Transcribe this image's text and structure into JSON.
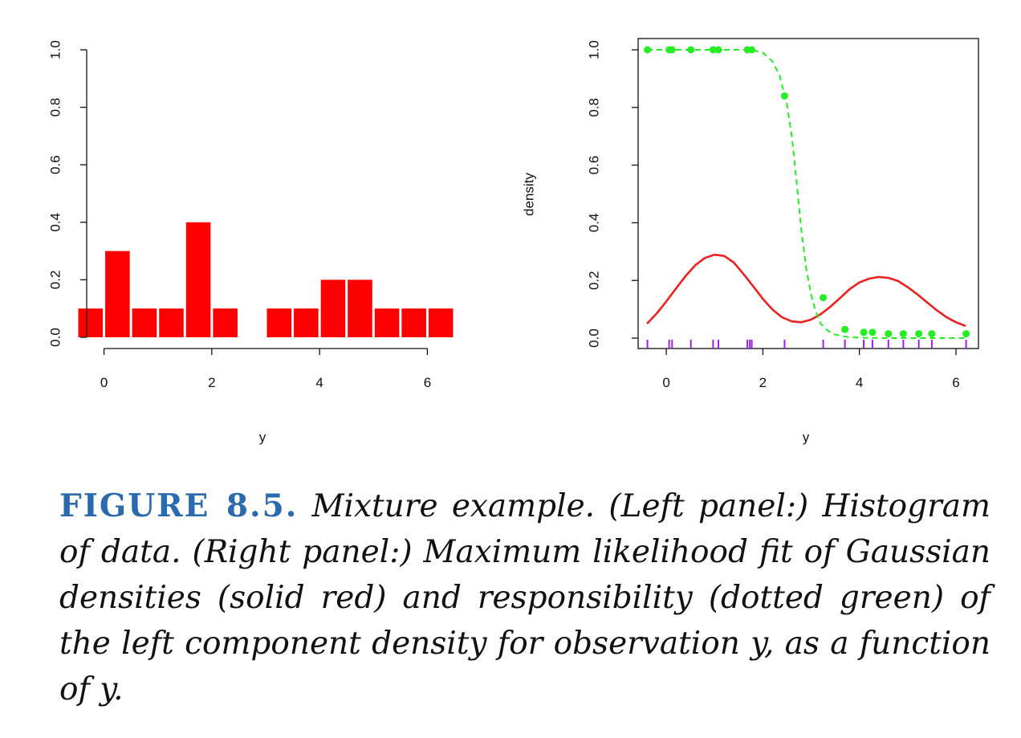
{
  "caption": {
    "label": "FIGURE 8.5.",
    "text": "Mixture example. (Left panel:) Histogram of data. (Right panel:) Maximum likelihood fit of Gaussian densities (solid red) and responsibility (dotted green) of the left component density for observation y, as a function of y."
  },
  "colors": {
    "bars": "#ff0000",
    "density_line": "#ee2020",
    "responsibility": "#22ee22",
    "rug": "#9b1fe8",
    "caption_label": "#2a6bb0"
  },
  "chart_data": [
    {
      "type": "bar",
      "title": "",
      "xlabel": "y",
      "ylabel": "",
      "xlim": [
        -0.5,
        6.5
      ],
      "ylim": [
        0,
        1.0
      ],
      "xticks": [
        "0",
        "2",
        "4",
        "6"
      ],
      "yticks": [
        "0.0",
        "0.2",
        "0.4",
        "0.6",
        "0.8",
        "1.0"
      ],
      "bin_width": 0.5,
      "bins": [
        {
          "x0": -0.5,
          "x1": 0.0,
          "value": 0.1
        },
        {
          "x0": 0.0,
          "x1": 0.5,
          "value": 0.3
        },
        {
          "x0": 0.5,
          "x1": 1.0,
          "value": 0.1
        },
        {
          "x0": 1.0,
          "x1": 1.5,
          "value": 0.1
        },
        {
          "x0": 1.5,
          "x1": 2.0,
          "value": 0.4
        },
        {
          "x0": 2.0,
          "x1": 2.5,
          "value": 0.1
        },
        {
          "x0": 2.5,
          "x1": 3.0,
          "value": 0.0
        },
        {
          "x0": 3.0,
          "x1": 3.5,
          "value": 0.1
        },
        {
          "x0": 3.5,
          "x1": 4.0,
          "value": 0.1
        },
        {
          "x0": 4.0,
          "x1": 4.5,
          "value": 0.2
        },
        {
          "x0": 4.5,
          "x1": 5.0,
          "value": 0.2
        },
        {
          "x0": 5.0,
          "x1": 5.5,
          "value": 0.1
        },
        {
          "x0": 5.5,
          "x1": 6.0,
          "value": 0.1
        },
        {
          "x0": 6.0,
          "x1": 6.5,
          "value": 0.1
        }
      ],
      "grid": false,
      "legend": "none"
    },
    {
      "type": "line",
      "title": "",
      "xlabel": "y",
      "ylabel": "density",
      "xlim": [
        -0.5,
        6.3
      ],
      "ylim": [
        -0.02,
        1.05
      ],
      "xticks": [
        "0",
        "2",
        "4",
        "6"
      ],
      "yticks": [
        "0.0",
        "0.2",
        "0.4",
        "0.6",
        "0.8",
        "1.0"
      ],
      "series": [
        {
          "style": "solid",
          "x": [
            -0.4,
            -0.2,
            0.0,
            0.2,
            0.4,
            0.6,
            0.8,
            1.0,
            1.2,
            1.4,
            1.6,
            1.8,
            2.0,
            2.2,
            2.4,
            2.6,
            2.8,
            3.0,
            3.2,
            3.4,
            3.6,
            3.8,
            4.0,
            4.2,
            4.4,
            4.6,
            4.8,
            5.0,
            5.2,
            5.4,
            5.6,
            5.8,
            6.0,
            6.2
          ],
          "y": [
            0.05,
            0.085,
            0.127,
            0.172,
            0.215,
            0.253,
            0.278,
            0.289,
            0.285,
            0.262,
            0.222,
            0.18,
            0.136,
            0.099,
            0.072,
            0.058,
            0.055,
            0.064,
            0.083,
            0.109,
            0.139,
            0.17,
            0.193,
            0.206,
            0.212,
            0.209,
            0.198,
            0.177,
            0.152,
            0.124,
            0.097,
            0.073,
            0.055,
            0.042
          ]
        },
        {
          "style": "dashed",
          "x": [
            -0.4,
            0.0,
            0.5,
            1.0,
            1.5,
            1.75,
            2.0,
            2.2,
            2.35,
            2.5,
            2.6,
            2.7,
            2.8,
            2.9,
            3.0,
            3.1,
            3.2,
            3.35,
            3.5,
            3.75,
            4.0,
            4.5,
            5.0,
            5.5,
            6.2
          ],
          "y": [
            1.0,
            1.0,
            1.0,
            1.0,
            1.0,
            1.0,
            0.99,
            0.96,
            0.91,
            0.81,
            0.7,
            0.54,
            0.37,
            0.24,
            0.15,
            0.09,
            0.05,
            0.025,
            0.012,
            0.004,
            0.001,
            0.0,
            0.0,
            0.0,
            0.0
          ]
        }
      ],
      "points": {
        "x": [
          -0.39,
          0.06,
          0.12,
          0.51,
          0.97,
          1.08,
          1.68,
          1.77,
          2.45,
          3.25,
          3.7,
          4.09,
          4.27,
          4.6,
          4.91,
          5.23,
          5.5,
          6.21
        ],
        "y": [
          1.0,
          1.0,
          1.0,
          1.0,
          1.0,
          1.0,
          1.0,
          1.0,
          0.84,
          0.14,
          0.03,
          0.02,
          0.02,
          0.015,
          0.015,
          0.015,
          0.015,
          0.015
        ]
      },
      "rug": [
        -0.39,
        0.06,
        0.12,
        0.51,
        0.97,
        1.08,
        1.68,
        1.73,
        1.77,
        2.45,
        3.25,
        3.7,
        4.09,
        4.27,
        4.6,
        4.91,
        5.23,
        5.5,
        6.21
      ],
      "grid": false,
      "legend": "none",
      "box": true
    }
  ]
}
